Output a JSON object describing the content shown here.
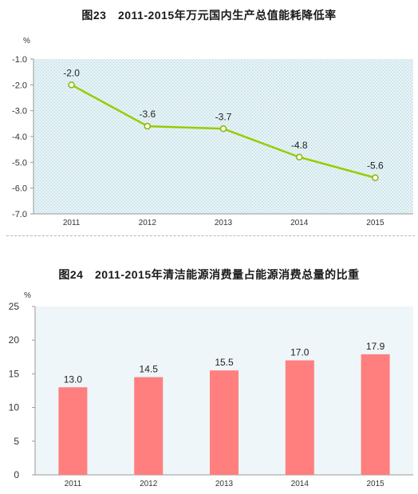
{
  "chart_data": [
    {
      "type": "line",
      "title": "图23　2011-2015年万元国内生产总值能耗降低率",
      "ylabel": "%",
      "xlabel": "",
      "categories": [
        "2011",
        "2012",
        "2013",
        "2014",
        "2015"
      ],
      "values": [
        -2.0,
        -3.6,
        -3.7,
        -4.8,
        -5.6
      ],
      "data_labels": [
        "-2.0",
        "-3.6",
        "-3.7",
        "-4.8",
        "-5.6"
      ],
      "yticks": [
        "-1.0",
        "-2.0",
        "-3.0",
        "-4.0",
        "-5.0",
        "-6.0",
        "-7.0"
      ],
      "ylim": [
        -7.0,
        -1.0
      ],
      "grid": false,
      "legend": "none",
      "colors": {
        "line": "#99cc00",
        "plot_bg": "#d9ecf2"
      }
    },
    {
      "type": "bar",
      "title": "图24　2011-2015年清洁能源消费量占能源消费总量的比重",
      "ylabel": "%",
      "xlabel": "",
      "categories": [
        "2011",
        "2012",
        "2013",
        "2014",
        "2015"
      ],
      "values": [
        13.0,
        14.5,
        15.5,
        17.0,
        17.9
      ],
      "data_labels": [
        "13.0",
        "14.5",
        "15.5",
        "17.0",
        "17.9"
      ],
      "yticks": [
        "25",
        "20",
        "15",
        "10",
        "5",
        "0"
      ],
      "ylim": [
        0,
        25
      ],
      "grid": false,
      "legend": "none",
      "colors": {
        "bar": "#ff7f7f",
        "plot_bg": "#eef6f9"
      }
    }
  ]
}
